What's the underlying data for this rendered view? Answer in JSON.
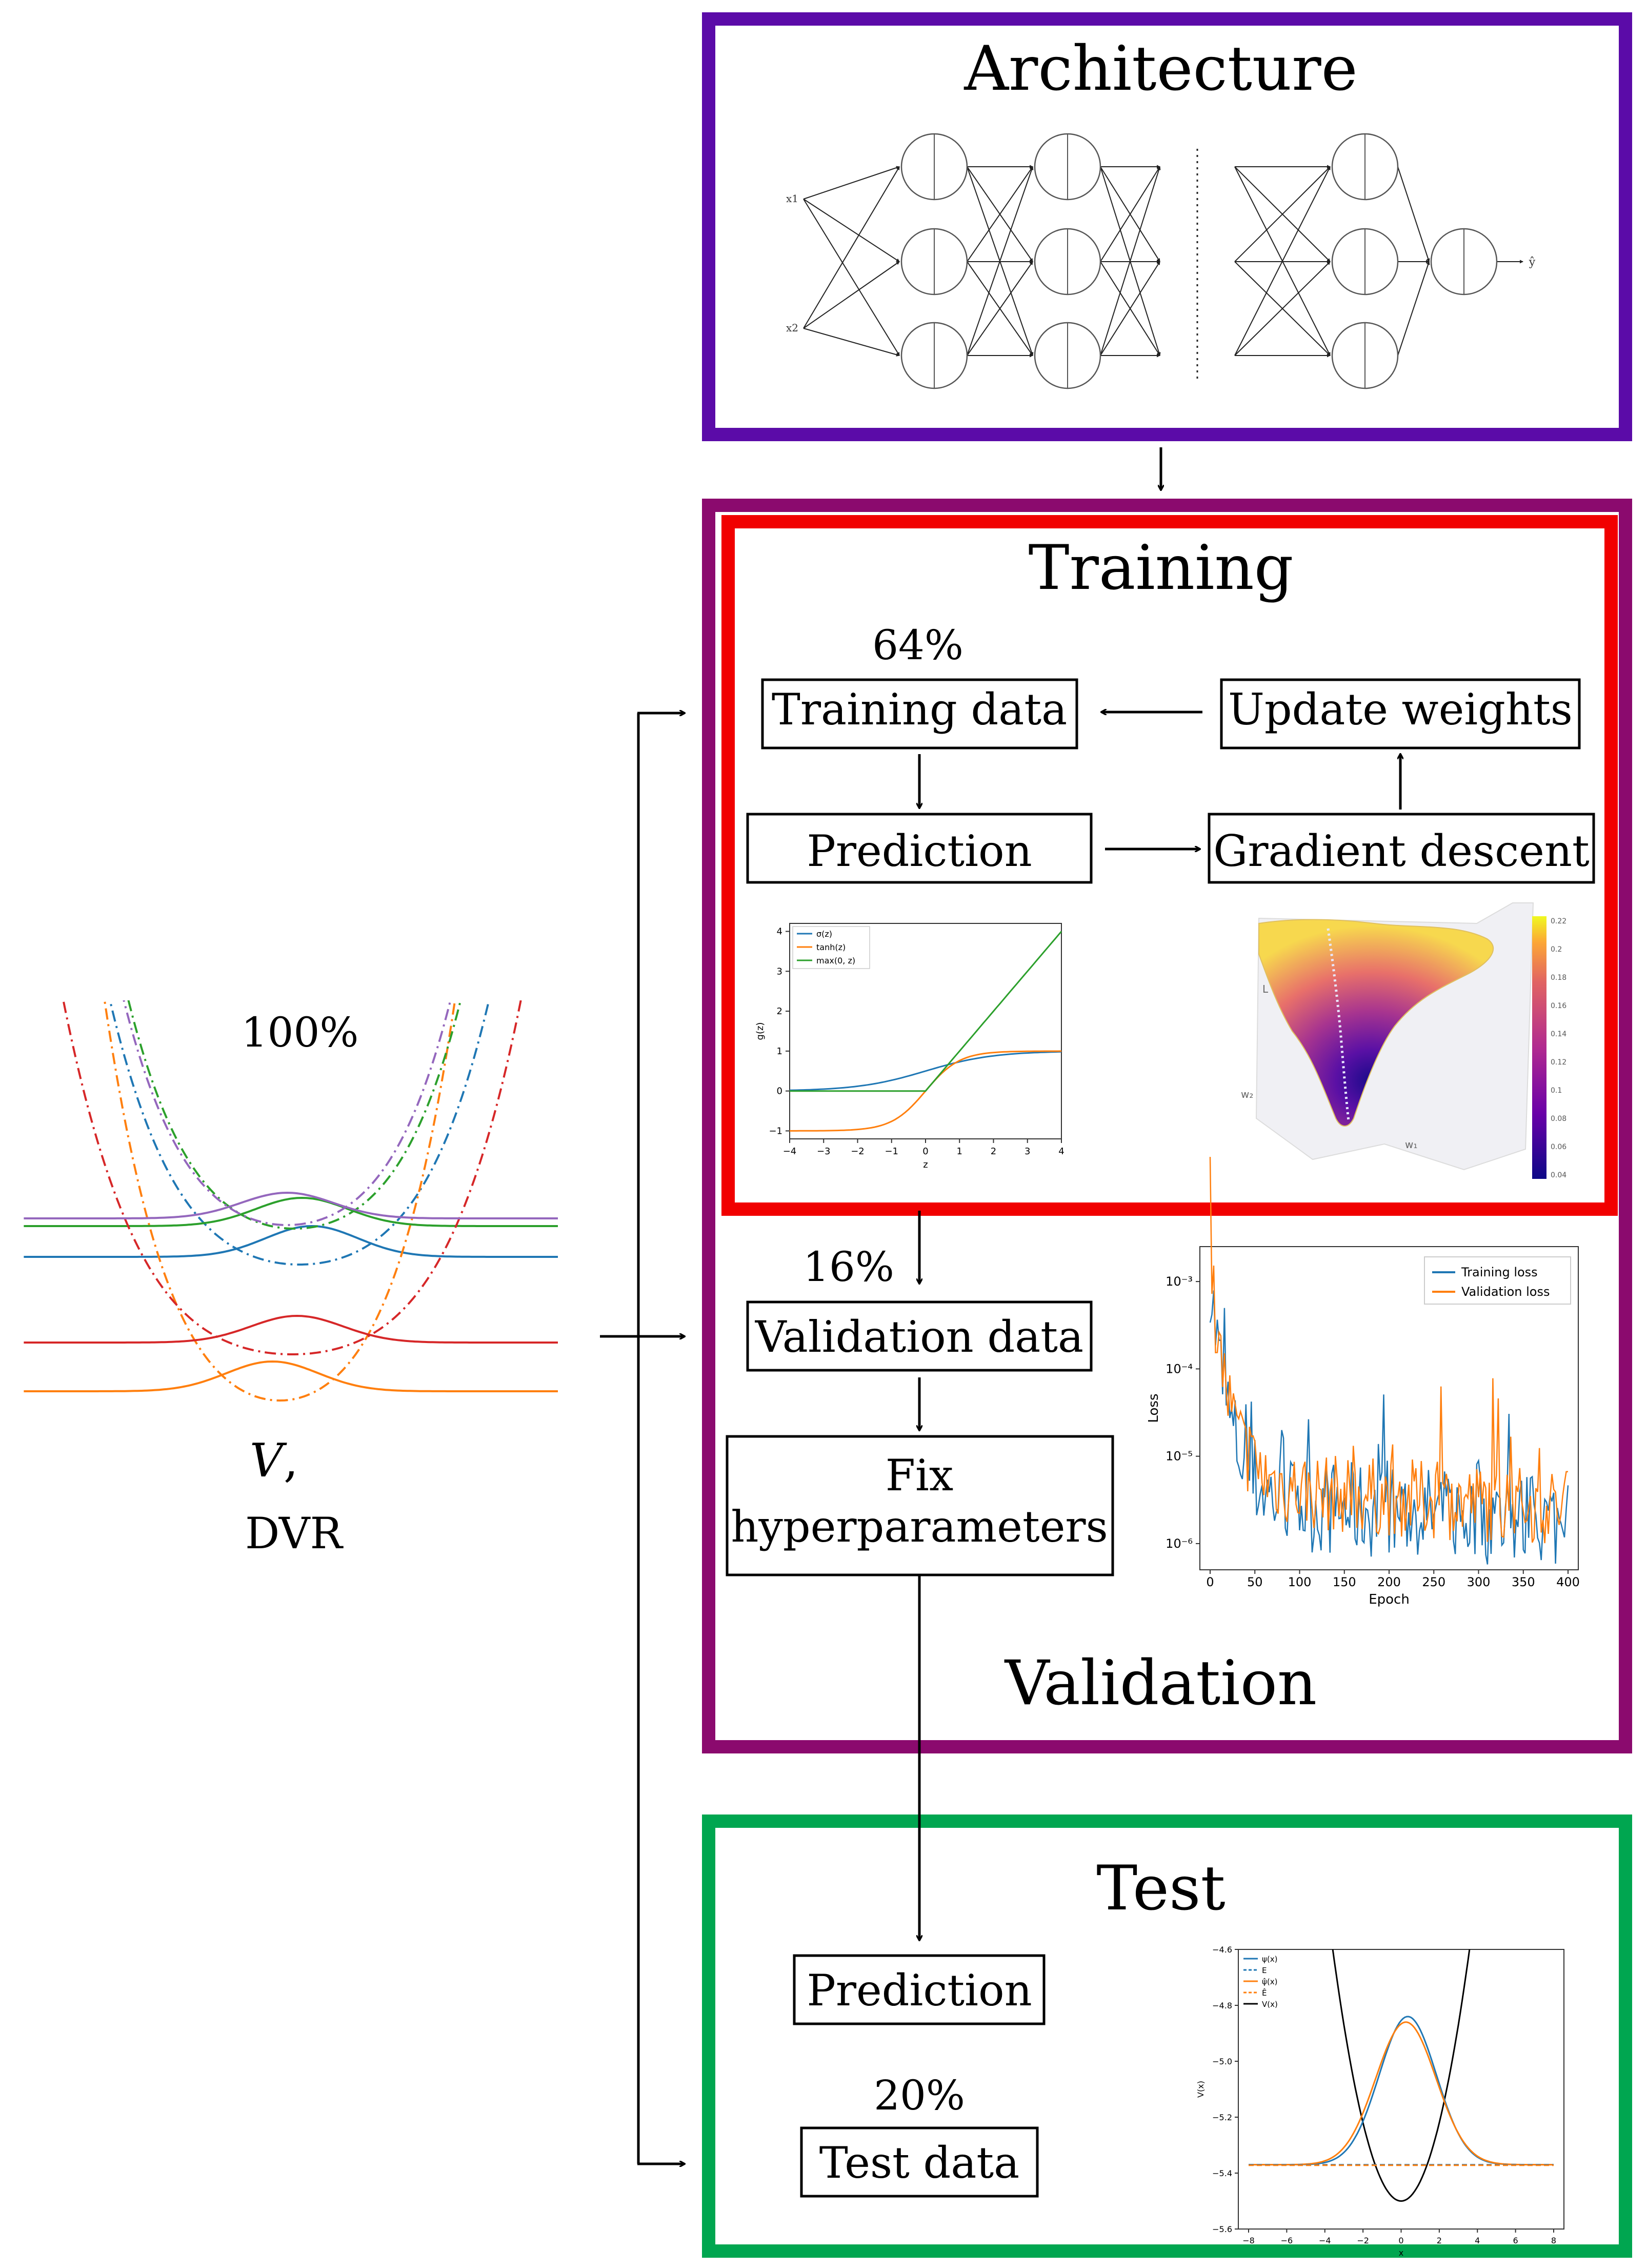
{
  "sections": {
    "architecture": {
      "title": "Architecture",
      "color": "#5B0BA8"
    },
    "training": {
      "title": "Training",
      "color": "#F10000"
    },
    "validation_outer": {
      "color": "#8B0A6E"
    },
    "validation": {
      "title": "Validation"
    },
    "test": {
      "title": "Test",
      "color": "#00A650"
    }
  },
  "data_panel": {
    "percent": "100%",
    "label_v": "V",
    "label_comma": ",",
    "label_dvr": "DVR"
  },
  "training": {
    "percent": "64%",
    "training_data": "Training data",
    "update_weights": "Update weights",
    "prediction": "Prediction",
    "gradient_descent": "Gradient descent"
  },
  "validation": {
    "percent": "16%",
    "validation_data": "Validation data",
    "fix_line1": "Fix",
    "fix_line2": "hyperparameters"
  },
  "test": {
    "prediction": "Prediction",
    "percent": "20%",
    "test_data": "Test data"
  },
  "architecture_net": {
    "inputs": [
      "x1",
      "x2"
    ],
    "output": "ŷ"
  },
  "activation_plot": {
    "chart_data": {
      "type": "line",
      "xlabel": "z",
      "ylabel": "g(z)",
      "xlim": [
        -4,
        4
      ],
      "ylim": [
        -1.2,
        4.2
      ],
      "xticks": [
        "−4",
        "−3",
        "−2",
        "−1",
        "0",
        "1",
        "2",
        "3",
        "4"
      ],
      "yticks": [
        "−1",
        "0",
        "1",
        "2",
        "3",
        "4"
      ],
      "series": [
        {
          "name": "σ(z)",
          "color": "#1f77b4",
          "fn": "sigmoid"
        },
        {
          "name": "tanh(z)",
          "color": "#ff7f0e",
          "fn": "tanh"
        },
        {
          "name": "max(0, z)",
          "color": "#2ca02c",
          "fn": "relu"
        }
      ]
    }
  },
  "surface_plot": {
    "colorbar_ticks": [
      "0.22",
      "0.2",
      "0.18",
      "0.16",
      "0.14",
      "0.12",
      "0.1",
      "0.08",
      "0.06",
      "0.04"
    ],
    "axis_labels": [
      "w₂",
      "w₁",
      "L"
    ]
  },
  "loss_plot": {
    "chart_data": {
      "type": "line",
      "xlabel": "Epoch",
      "ylabel": "Loss",
      "xlim": [
        0,
        400
      ],
      "ylim_log10": [
        -6.3,
        -2.6
      ],
      "xticks": [
        "0",
        "50",
        "100",
        "150",
        "200",
        "250",
        "300",
        "350",
        "400"
      ],
      "yticks": [
        "10⁻³",
        "10⁻⁴",
        "10⁻⁵",
        "10⁻⁶"
      ],
      "legend": "top-right",
      "series": [
        {
          "name": "Training loss",
          "color": "#1f77b4"
        },
        {
          "name": "Validation loss",
          "color": "#ff7f0e"
        }
      ]
    }
  },
  "wave_plot": {
    "chart_data": {
      "type": "line",
      "xlabel": "x",
      "ylabel": "V(x)",
      "xlim": [
        -8,
        8
      ],
      "ylim": [
        -5.6,
        -4.6
      ],
      "xticks": [
        "−8",
        "−6",
        "−4",
        "−2",
        "0",
        "2",
        "4",
        "6",
        "8"
      ],
      "yticks": [
        "−4.6",
        "−4.8",
        "−5.0",
        "−5.2",
        "−5.4",
        "−5.6"
      ],
      "energy": -5.37,
      "series": [
        {
          "name": "ψ(x)",
          "color": "#1f77b4"
        },
        {
          "name": "E",
          "color": "#1f77b4"
        },
        {
          "name": "ψ̂(x)",
          "color": "#ff7f0e"
        },
        {
          "name": "Ê",
          "color": "#ff7f0e"
        },
        {
          "name": "V(x)",
          "color": "#000000"
        }
      ]
    }
  },
  "potentials": {
    "colors": [
      "#1f77b4",
      "#ff7f0e",
      "#2ca02c",
      "#d62728",
      "#9467bd"
    ]
  }
}
